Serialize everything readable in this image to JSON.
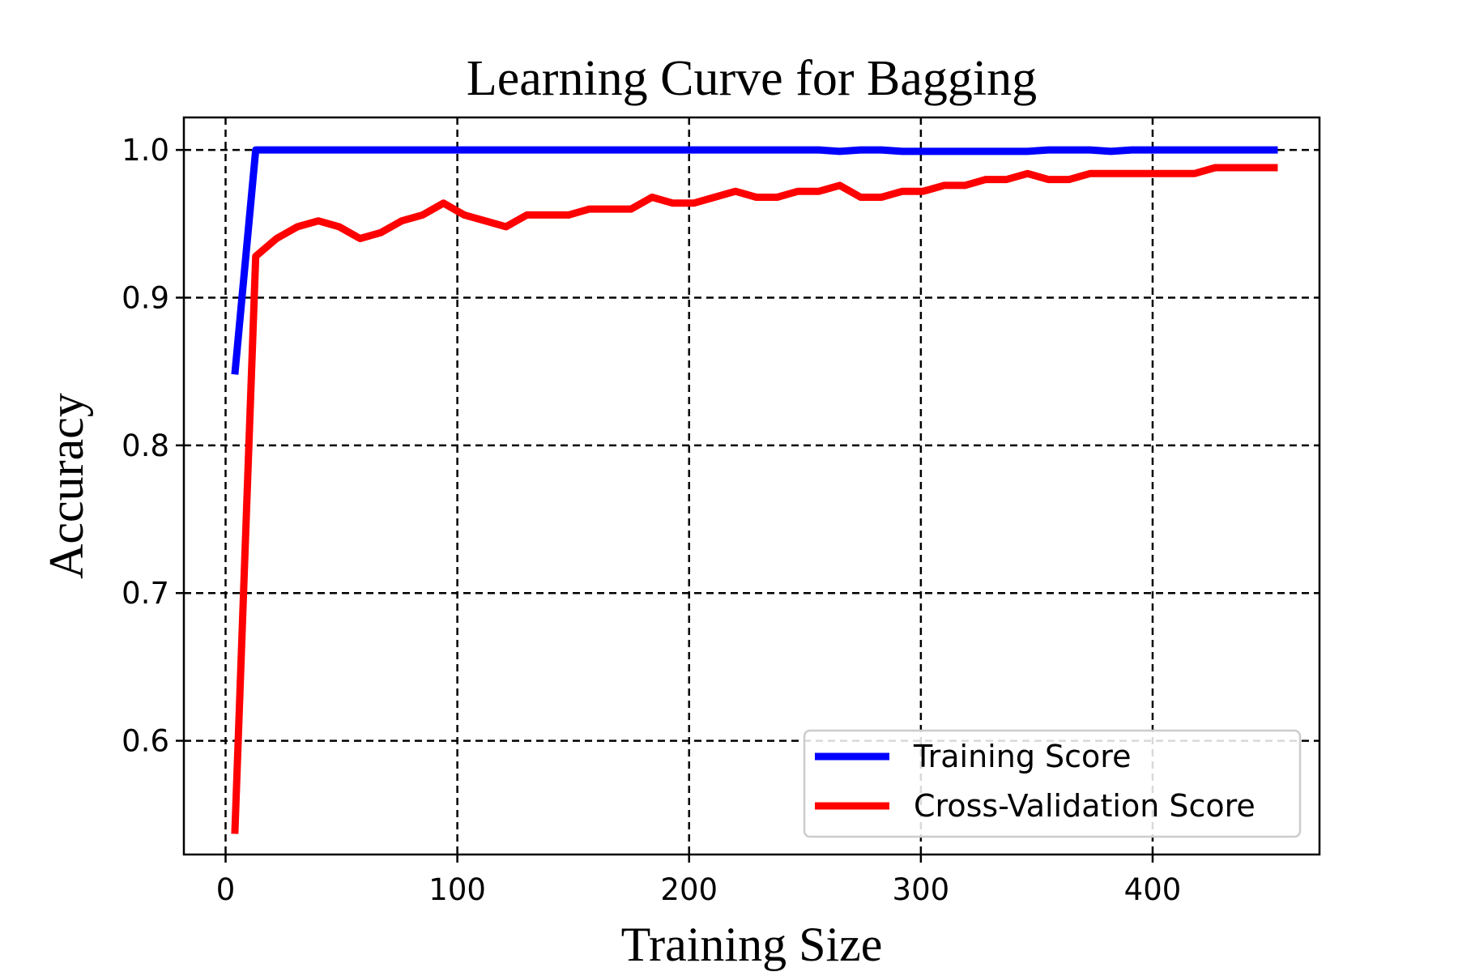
{
  "chart_data": {
    "type": "line",
    "title": "Learning Curve for Bagging",
    "xlabel": "Training Size",
    "ylabel": "Accuracy",
    "xlim": [
      -18,
      472
    ],
    "ylim": [
      0.523,
      1.022
    ],
    "xticks": [
      0,
      100,
      200,
      300,
      400
    ],
    "yticks": [
      0.6,
      0.7,
      0.8,
      0.9,
      1.0
    ],
    "xtick_labels": [
      "0",
      "100",
      "200",
      "300",
      "400"
    ],
    "ytick_labels": [
      "0.6",
      "0.7",
      "0.8",
      "0.9",
      "1.0"
    ],
    "grid": true,
    "legend_position": "lower-right",
    "x": [
      4,
      13,
      22,
      31,
      40,
      49,
      58,
      67,
      76,
      85,
      94,
      103,
      112,
      121,
      130,
      139,
      148,
      157,
      166,
      175,
      184,
      193,
      202,
      211,
      220,
      229,
      238,
      247,
      256,
      265,
      274,
      283,
      292,
      301,
      310,
      319,
      328,
      337,
      346,
      355,
      364,
      373,
      382,
      391,
      400,
      409,
      418,
      427,
      436,
      445,
      454
    ],
    "series": [
      {
        "name": "Training Score",
        "color": "#0000ff",
        "values": [
          0.848,
          1.0,
          1.0,
          1.0,
          1.0,
          1.0,
          1.0,
          1.0,
          1.0,
          1.0,
          1.0,
          1.0,
          1.0,
          1.0,
          1.0,
          1.0,
          1.0,
          1.0,
          1.0,
          1.0,
          1.0,
          1.0,
          1.0,
          1.0,
          1.0,
          1.0,
          1.0,
          1.0,
          1.0,
          0.999,
          1.0,
          1.0,
          0.999,
          0.999,
          0.999,
          0.999,
          0.999,
          0.999,
          0.999,
          1.0,
          1.0,
          1.0,
          0.999,
          1.0,
          1.0,
          1.0,
          1.0,
          1.0,
          1.0,
          1.0,
          1.0
        ]
      },
      {
        "name": "Cross-Validation Score",
        "color": "#ff0000",
        "values": [
          0.537,
          0.928,
          0.94,
          0.948,
          0.952,
          0.948,
          0.94,
          0.944,
          0.952,
          0.956,
          0.964,
          0.956,
          0.952,
          0.948,
          0.956,
          0.956,
          0.956,
          0.96,
          0.96,
          0.96,
          0.968,
          0.964,
          0.964,
          0.968,
          0.972,
          0.968,
          0.968,
          0.972,
          0.972,
          0.976,
          0.968,
          0.968,
          0.972,
          0.972,
          0.976,
          0.976,
          0.98,
          0.98,
          0.984,
          0.98,
          0.98,
          0.984,
          0.984,
          0.984,
          0.984,
          0.984,
          0.984,
          0.988,
          0.988,
          0.988,
          0.988
        ]
      }
    ]
  }
}
